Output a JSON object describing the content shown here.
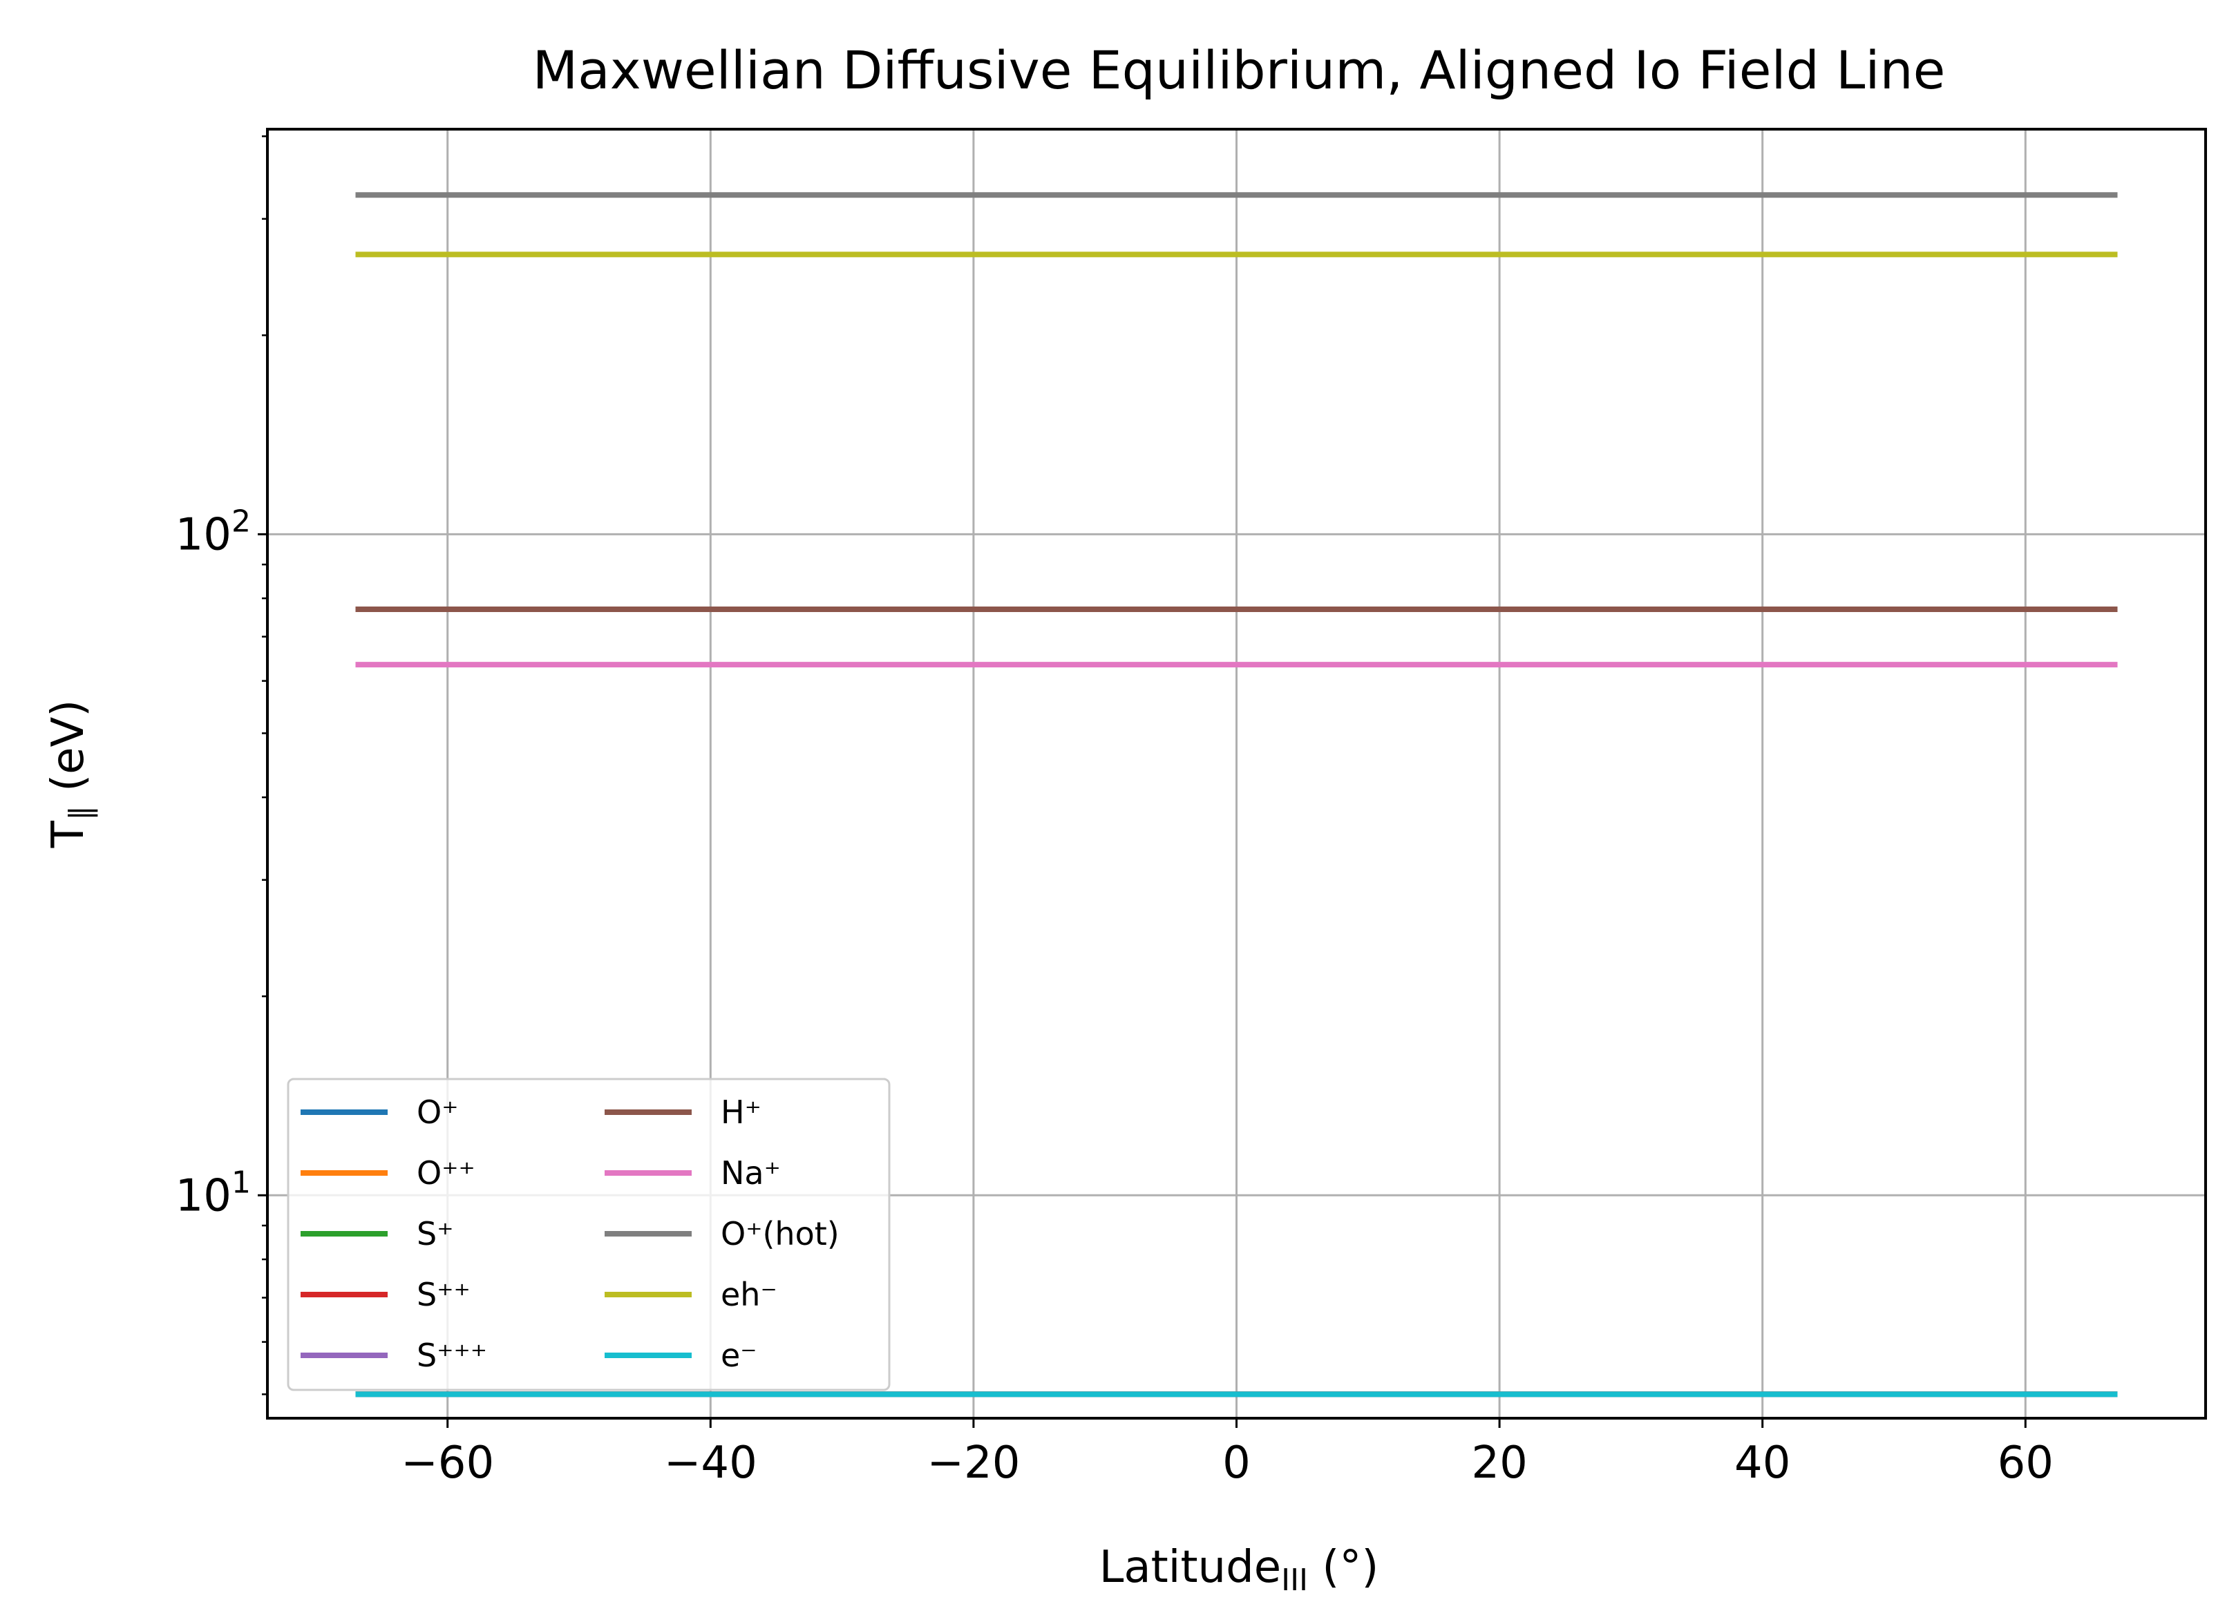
{
  "chart_data": {
    "type": "line",
    "title": "Maxwellian Diffusive Equilibrium, Aligned Io Field Line",
    "xlabel": {
      "main": "Latitude",
      "sub": "III",
      "suffix": " (°)"
    },
    "ylabel": {
      "main": "T",
      "sub": "∥",
      "suffix": " (eV)"
    },
    "xlim": [
      -73.7,
      73.7
    ],
    "ylim": [
      4.6,
      410
    ],
    "yscale": "log",
    "grid": true,
    "legend_position": "lower-left",
    "legend_columns": 2,
    "xticks": [
      {
        "value": -60,
        "label": "−60"
      },
      {
        "value": -40,
        "label": "−40"
      },
      {
        "value": -20,
        "label": "−20"
      },
      {
        "value": 0,
        "label": "0"
      },
      {
        "value": 20,
        "label": "20"
      },
      {
        "value": 40,
        "label": "40"
      },
      {
        "value": 60,
        "label": "60"
      }
    ],
    "yticks": [
      {
        "value": 10,
        "base": "10",
        "exp": "1"
      },
      {
        "value": 100,
        "base": "10",
        "exp": "2"
      }
    ],
    "x": [
      -67,
      67
    ],
    "series": [
      {
        "name": "O⁺",
        "color": "#1f77b4",
        "values": [
          5.0,
          5.0
        ]
      },
      {
        "name": "O⁺⁺",
        "color": "#ff7f0e",
        "values": [
          5.0,
          5.0
        ]
      },
      {
        "name": "S⁺",
        "color": "#2ca02c",
        "values": [
          5.0,
          5.0
        ]
      },
      {
        "name": "S⁺⁺",
        "color": "#d62728",
        "values": [
          5.0,
          5.0
        ]
      },
      {
        "name": "S⁺⁺⁺",
        "color": "#9467bd",
        "values": [
          5.0,
          5.0
        ]
      },
      {
        "name": "H⁺",
        "color": "#8c564b",
        "values": [
          77.0,
          77.0
        ]
      },
      {
        "name": "Na⁺",
        "color": "#e377c2",
        "values": [
          63.5,
          63.5
        ]
      },
      {
        "name": "O⁺(hot)",
        "color": "#7f7f7f",
        "values": [
          326,
          326
        ]
      },
      {
        "name": "eh⁻",
        "color": "#bcbd22",
        "values": [
          265,
          265
        ]
      },
      {
        "name": "e⁻",
        "color": "#17becf",
        "values": [
          5.0,
          5.0
        ]
      }
    ]
  }
}
